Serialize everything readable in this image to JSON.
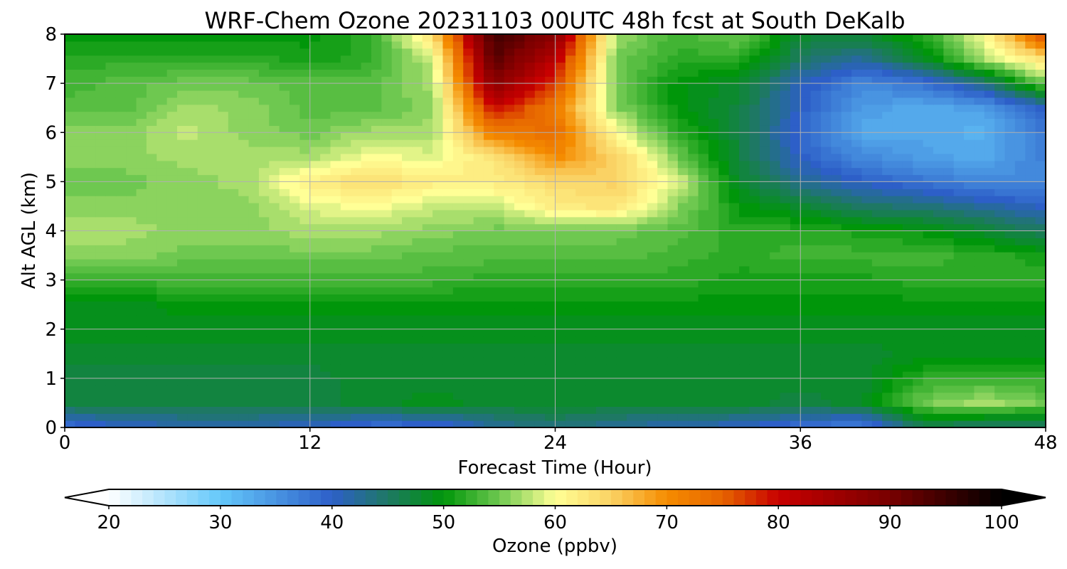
{
  "chart_data": {
    "type": "heatmap",
    "title": "WRF-Chem Ozone  20231103 00UTC 48h fcst at South DeKalb",
    "xlabel": "Forecast Time (Hour)",
    "ylabel": "Alt AGL (km)",
    "xlim": [
      0,
      48
    ],
    "ylim": [
      0,
      8
    ],
    "xticks": [
      0,
      12,
      24,
      36,
      48
    ],
    "yticks": [
      0,
      1,
      2,
      3,
      4,
      5,
      6,
      7,
      8
    ],
    "grid": true,
    "colorbar": {
      "label": "Ozone  (ppbv)",
      "range": [
        20,
        100
      ],
      "ticks": [
        20,
        30,
        40,
        50,
        60,
        70,
        80,
        90,
        100
      ],
      "extend": "both",
      "stops": [
        [
          20,
          "#ffffff"
        ],
        [
          30,
          "#64c8fa"
        ],
        [
          40,
          "#2d5fc8"
        ],
        [
          45,
          "#1e7864"
        ],
        [
          50,
          "#00960a"
        ],
        [
          55,
          "#6ec850"
        ],
        [
          60,
          "#ffff96"
        ],
        [
          65,
          "#fad264"
        ],
        [
          70,
          "#f58c00"
        ],
        [
          75,
          "#e66400"
        ],
        [
          80,
          "#c80000"
        ],
        [
          90,
          "#780000"
        ],
        [
          100,
          "#000000"
        ]
      ]
    },
    "grid_x": [
      0,
      3,
      6,
      9,
      12,
      15,
      18,
      21,
      24,
      27,
      30,
      33,
      36,
      39,
      42,
      45,
      48
    ],
    "grid_y": [
      0,
      0.5,
      1,
      1.5,
      2,
      2.5,
      3,
      3.5,
      4,
      4.5,
      5,
      5.5,
      6,
      6.5,
      7,
      7.5,
      8
    ],
    "values": [
      [
        38,
        40,
        41,
        41,
        40,
        38,
        38,
        42,
        44,
        42,
        41,
        40,
        38,
        36,
        46,
        44,
        44
      ],
      [
        47,
        47,
        47,
        47,
        47,
        48,
        49,
        48,
        48,
        48,
        48,
        48,
        47,
        48,
        55,
        57,
        55
      ],
      [
        47,
        47,
        47,
        47,
        47,
        48,
        48,
        48,
        48,
        48,
        48,
        48,
        48,
        48,
        52,
        53,
        52
      ],
      [
        48,
        48,
        48,
        48,
        48,
        48,
        48,
        48,
        48,
        48,
        48,
        48,
        48,
        48,
        49,
        49,
        49
      ],
      [
        49,
        49,
        49,
        49,
        49,
        49,
        49,
        49,
        49,
        49,
        49,
        49,
        49,
        49,
        49,
        49,
        49
      ],
      [
        49,
        49,
        50,
        50,
        50,
        50,
        50,
        50,
        50,
        50,
        50,
        50,
        50,
        50,
        50,
        50,
        50
      ],
      [
        53,
        53,
        53,
        53,
        53,
        53,
        53,
        52,
        52,
        52,
        52,
        51,
        51,
        51,
        52,
        52,
        52
      ],
      [
        56,
        56,
        55,
        55,
        55,
        55,
        54,
        54,
        54,
        54,
        53,
        52,
        53,
        53,
        53,
        52,
        51
      ],
      [
        57,
        57,
        56,
        56,
        57,
        57,
        56,
        55,
        55,
        55,
        54,
        52,
        52,
        51,
        50,
        48,
        45
      ],
      [
        56,
        56,
        56,
        56,
        59,
        60,
        58,
        58,
        62,
        63,
        56,
        50,
        48,
        45,
        44,
        42,
        40
      ],
      [
        55,
        55,
        56,
        57,
        62,
        64,
        62,
        62,
        64,
        65,
        59,
        48,
        43,
        40,
        38,
        36,
        36
      ],
      [
        56,
        56,
        57,
        57,
        57,
        60,
        59,
        63,
        70,
        65,
        55,
        47,
        40,
        36,
        34,
        33,
        37
      ],
      [
        56,
        56,
        58,
        56,
        55,
        57,
        57,
        72,
        74,
        60,
        52,
        47,
        39,
        33,
        33,
        32,
        38
      ],
      [
        54,
        54,
        57,
        56,
        54,
        54,
        56,
        80,
        72,
        56,
        50,
        47,
        40,
        34,
        33,
        34,
        40
      ],
      [
        53,
        54,
        55,
        55,
        54,
        54,
        57,
        88,
        77,
        55,
        50,
        48,
        41,
        36,
        38,
        44,
        55
      ],
      [
        52,
        52,
        52,
        52,
        51,
        52,
        58,
        93,
        82,
        55,
        52,
        52,
        45,
        42,
        48,
        57,
        64
      ],
      [
        50,
        50,
        50,
        50,
        50,
        52,
        64,
        95,
        88,
        57,
        53,
        55,
        48,
        48,
        52,
        60,
        78
      ]
    ]
  }
}
